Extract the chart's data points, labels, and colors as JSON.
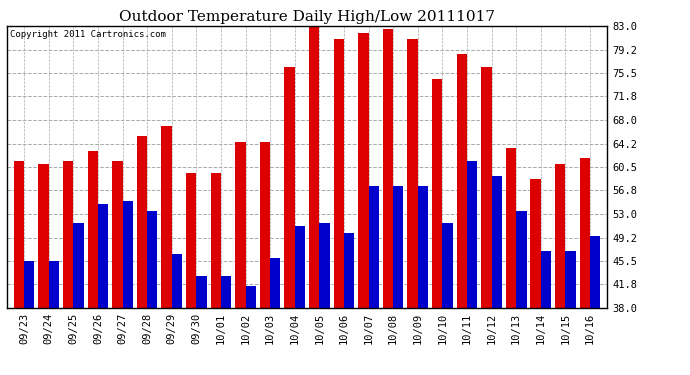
{
  "title": "Outdoor Temperature Daily High/Low 20111017",
  "copyright_text": "Copyright 2011 Cartronics.com",
  "dates": [
    "09/23",
    "09/24",
    "09/25",
    "09/26",
    "09/27",
    "09/28",
    "09/29",
    "09/30",
    "10/01",
    "10/02",
    "10/03",
    "10/04",
    "10/05",
    "10/06",
    "10/07",
    "10/08",
    "10/09",
    "10/10",
    "10/11",
    "10/12",
    "10/13",
    "10/14",
    "10/15",
    "10/16"
  ],
  "highs": [
    61.5,
    61.0,
    61.5,
    63.0,
    61.5,
    65.5,
    67.0,
    59.5,
    59.5,
    64.5,
    64.5,
    76.5,
    84.0,
    81.0,
    82.0,
    82.5,
    81.0,
    74.5,
    78.5,
    76.5,
    63.5,
    58.5,
    61.0,
    62.0
  ],
  "lows": [
    45.5,
    45.5,
    51.5,
    54.5,
    55.0,
    53.5,
    46.5,
    43.0,
    43.0,
    41.5,
    46.0,
    51.0,
    51.5,
    50.0,
    57.5,
    57.5,
    57.5,
    51.5,
    61.5,
    59.0,
    53.5,
    47.0,
    47.0,
    49.5
  ],
  "high_color": "#dd0000",
  "low_color": "#0000cc",
  "bg_color": "#ffffff",
  "plot_bg_color": "#ffffff",
  "grid_color": "#aaaaaa",
  "yticks": [
    38.0,
    41.8,
    45.5,
    49.2,
    53.0,
    56.8,
    60.5,
    64.2,
    68.0,
    71.8,
    75.5,
    79.2,
    83.0
  ],
  "ymin": 38.0,
  "ymax": 83.0,
  "title_fontsize": 11,
  "copyright_fontsize": 6.5,
  "tick_fontsize": 7.5
}
